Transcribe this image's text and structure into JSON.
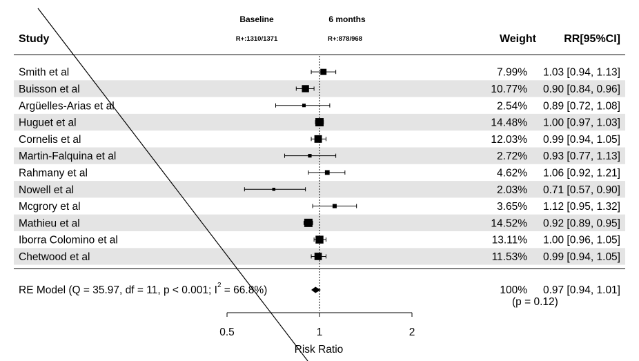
{
  "chart_data": {
    "type": "forest",
    "header": {
      "study_label": "Study",
      "baseline_label": "Baseline",
      "baseline_count": "R+:1310/1371",
      "followup_label": "6 months",
      "followup_count": "R+:878/968",
      "weight_label": "Weight",
      "rr_label": "RR[95%CI]"
    },
    "studies": [
      {
        "name": "Smith et al",
        "rr": 1.03,
        "lo": 0.94,
        "hi": 1.13,
        "weight": 7.99,
        "weight_text": "7.99%",
        "ci_text": "1.03 [0.94, 1.13]"
      },
      {
        "name": "Buisson et al",
        "rr": 0.9,
        "lo": 0.84,
        "hi": 0.96,
        "weight": 10.77,
        "weight_text": "10.77%",
        "ci_text": "0.90 [0.84, 0.96]"
      },
      {
        "name": "Argüelles-Arias et al",
        "rr": 0.89,
        "lo": 0.72,
        "hi": 1.08,
        "weight": 2.54,
        "weight_text": "2.54%",
        "ci_text": "0.89 [0.72, 1.08]"
      },
      {
        "name": "Huguet et al",
        "rr": 1.0,
        "lo": 0.97,
        "hi": 1.03,
        "weight": 14.48,
        "weight_text": "14.48%",
        "ci_text": "1.00 [0.97, 1.03]"
      },
      {
        "name": "Cornelis et al",
        "rr": 0.99,
        "lo": 0.94,
        "hi": 1.05,
        "weight": 12.03,
        "weight_text": "12.03%",
        "ci_text": "0.99 [0.94, 1.05]"
      },
      {
        "name": "Martin-Falquina et al",
        "rr": 0.93,
        "lo": 0.77,
        "hi": 1.13,
        "weight": 2.72,
        "weight_text": "2.72%",
        "ci_text": "0.93 [0.77, 1.13]"
      },
      {
        "name": "Rahmany et al",
        "rr": 1.06,
        "lo": 0.92,
        "hi": 1.21,
        "weight": 4.62,
        "weight_text": "4.62%",
        "ci_text": "1.06 [0.92, 1.21]"
      },
      {
        "name": "Nowell et al",
        "rr": 0.71,
        "lo": 0.57,
        "hi": 0.9,
        "weight": 2.03,
        "weight_text": "2.03%",
        "ci_text": "0.71 [0.57, 0.90]"
      },
      {
        "name": "Mcgrory et al",
        "rr": 1.12,
        "lo": 0.95,
        "hi": 1.32,
        "weight": 3.65,
        "weight_text": "3.65%",
        "ci_text": "1.12 [0.95, 1.32]"
      },
      {
        "name": "Mathieu et al",
        "rr": 0.92,
        "lo": 0.89,
        "hi": 0.95,
        "weight": 14.52,
        "weight_text": "14.52%",
        "ci_text": "0.92 [0.89, 0.95]"
      },
      {
        "name": "Iborra Colomino et al",
        "rr": 1.0,
        "lo": 0.96,
        "hi": 1.05,
        "weight": 13.11,
        "weight_text": "13.11%",
        "ci_text": "1.00 [0.96, 1.05]"
      },
      {
        "name": "Chetwood et al",
        "rr": 0.99,
        "lo": 0.94,
        "hi": 1.05,
        "weight": 11.53,
        "weight_text": "11.53%",
        "ci_text": "0.99 [0.94, 1.05]"
      }
    ],
    "summary": {
      "label_main": "RE Model (Q = 35.97, df = 11, p < 0.001; I",
      "label_sup": "2",
      "label_tail": " = 66.8%)",
      "rr": 0.97,
      "lo": 0.94,
      "hi": 1.01,
      "weight_text": "100%",
      "ci_text": "0.97 [0.94, 1.01]",
      "p_text": "(p = 0.12)"
    },
    "xaxis": {
      "label": "Risk Ratio",
      "scale": "log",
      "ticks": [
        0.5,
        1,
        2
      ],
      "tick_labels": [
        "0.5",
        "1",
        "2"
      ],
      "range": [
        0.5,
        2
      ],
      "reference_line": 1
    }
  },
  "colors": {
    "stripe": "#e4e4e4",
    "ink": "#000000"
  }
}
